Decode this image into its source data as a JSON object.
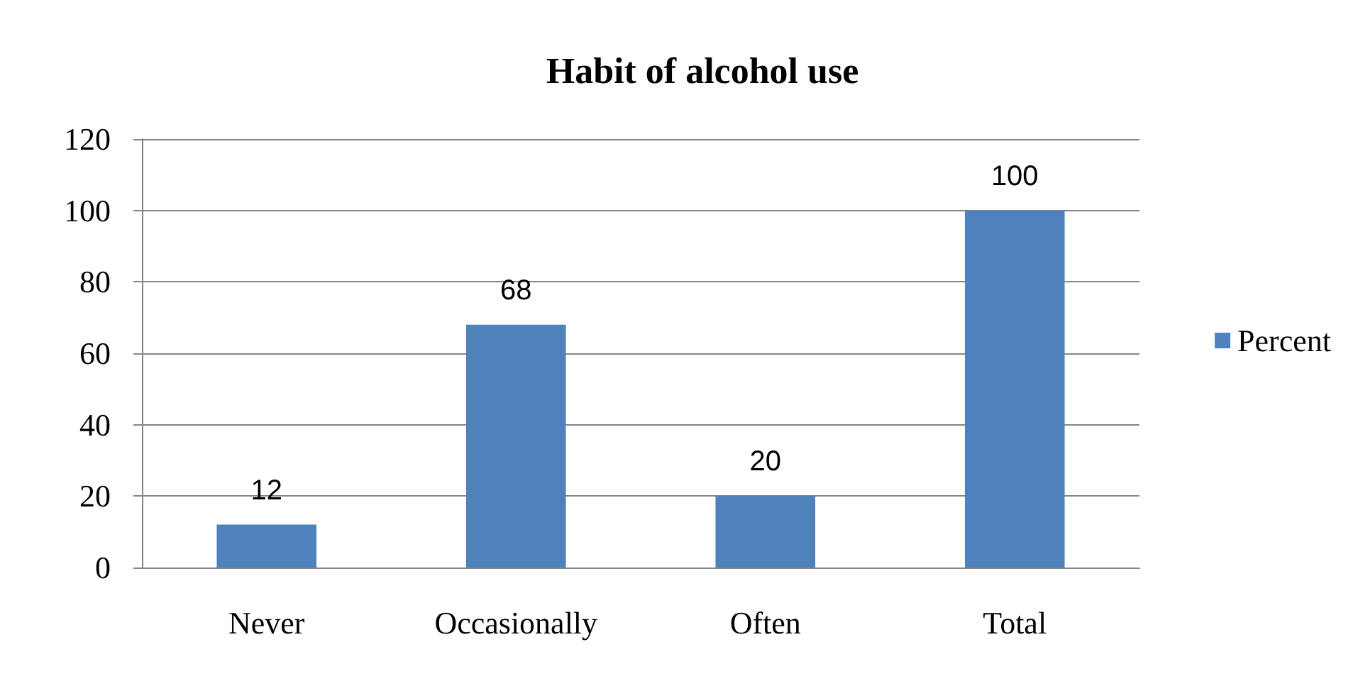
{
  "chart_data": {
    "type": "bar",
    "title": "Habit of alcohol use",
    "categories": [
      "Never",
      "Occasionally",
      "Often",
      "Total"
    ],
    "series": [
      {
        "name": "Percent",
        "color": "#4f81bd",
        "values": [
          12,
          68,
          20,
          100
        ]
      }
    ],
    "ylim": [
      0,
      120
    ],
    "yticks": [
      0,
      20,
      40,
      60,
      80,
      100,
      120
    ],
    "grid": "y",
    "legend": "right",
    "data_labels": true
  }
}
